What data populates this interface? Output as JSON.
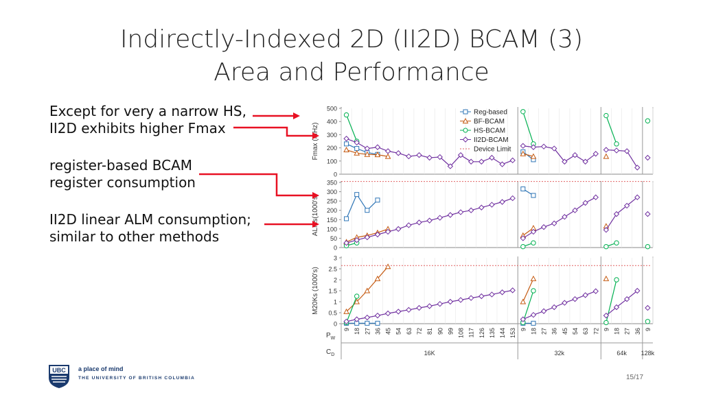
{
  "title": {
    "line1": "Indirectly-Indexed 2D (II2D) BCAM (3)",
    "line2": "Area and Performance"
  },
  "bullets": [
    {
      "lines": [
        "Except for very a narrow HS,",
        "II2D exhibits higher Fmax"
      ]
    },
    {
      "lines": [
        "register-based BCAM",
        "register consumption"
      ]
    },
    {
      "lines": [
        "II2D linear ALM consumption;",
        "similar to other methods"
      ]
    }
  ],
  "footer": {
    "logo_text": "UBC",
    "tagline": "a place of mind",
    "university": "THE UNIVERSITY OF BRITISH COLUMBIA",
    "page": "15/17"
  },
  "colors": {
    "reg": "#2e75b6",
    "bf": "#c55a11",
    "hs": "#00b050",
    "ii2d": "#7030a0",
    "limit": "#e06060",
    "arrow": "#e81123"
  },
  "chart_data": {
    "type": "line",
    "x_label": "PW",
    "cd_label": "CD",
    "categories": [
      "9",
      "18",
      "27",
      "36",
      "45",
      "54",
      "63",
      "72",
      "81",
      "90",
      "99",
      "108",
      "117",
      "126",
      "135",
      "144",
      "153",
      "9",
      "18",
      "27",
      "36",
      "45",
      "54",
      "63",
      "72",
      "9",
      "18",
      "27",
      "36",
      "9"
    ],
    "groups": [
      {
        "label": "16K",
        "start": 0,
        "end": 16
      },
      {
        "label": "32k",
        "start": 17,
        "end": 24
      },
      {
        "label": "64k",
        "start": 25,
        "end": 28
      },
      {
        "label": "128k",
        "start": 29,
        "end": 29
      }
    ],
    "legend": [
      "Reg-based",
      "BF-BCAM",
      "HS-BCAM",
      "II2D-BCAM",
      "Device Limit"
    ],
    "panels": [
      {
        "ylabel": "Fmax (MHz)",
        "ylim": [
          0,
          500
        ],
        "ticks": [
          "0",
          "100",
          "200",
          "300",
          "400",
          "500"
        ],
        "tick_values": [
          0,
          100,
          200,
          300,
          400,
          500
        ],
        "series": [
          {
            "name": "Reg-based",
            "values": [
              [
                0,
                230
              ],
              [
                1,
                195
              ],
              [
                2,
                165
              ],
              [
                3,
                150
              ],
              [
                17,
                170
              ],
              [
                18,
                110
              ]
            ]
          },
          {
            "name": "BF-BCAM",
            "values": [
              [
                0,
                185
              ],
              [
                1,
                160
              ],
              [
                2,
                150
              ],
              [
                3,
                148
              ],
              [
                4,
                135
              ],
              [
                17,
                155
              ],
              [
                18,
                135
              ],
              [
                25,
                135
              ]
            ]
          },
          {
            "name": "HS-BCAM",
            "values": [
              [
                0,
                450
              ],
              [
                1,
                250
              ],
              [
                17,
                475
              ],
              [
                18,
                230
              ],
              [
                25,
                445
              ],
              [
                26,
                230
              ],
              [
                29,
                405
              ]
            ]
          },
          {
            "name": "II2D-BCAM",
            "values": [
              [
                0,
                270
              ],
              [
                1,
                240
              ],
              [
                2,
                195
              ],
              [
                3,
                205
              ],
              [
                4,
                175
              ],
              [
                5,
                160
              ],
              [
                6,
                135
              ],
              [
                7,
                145
              ],
              [
                8,
                125
              ],
              [
                9,
                130
              ],
              [
                10,
                60
              ],
              [
                11,
                145
              ],
              [
                12,
                95
              ],
              [
                13,
                95
              ],
              [
                14,
                125
              ],
              [
                15,
                75
              ],
              [
                16,
                105
              ],
              [
                17,
                215
              ],
              [
                18,
                205
              ],
              [
                19,
                210
              ],
              [
                20,
                195
              ],
              [
                21,
                95
              ],
              [
                22,
                145
              ],
              [
                23,
                95
              ],
              [
                24,
                155
              ],
              [
                25,
                185
              ],
              [
                26,
                180
              ],
              [
                27,
                175
              ],
              [
                28,
                50
              ],
              [
                29,
                125
              ]
            ]
          }
        ]
      },
      {
        "ylabel": "ALMs(1000's)",
        "ylim": [
          0,
          350
        ],
        "ticks": [
          "0",
          "50",
          "100",
          "150",
          "200",
          "250",
          "300",
          "350"
        ],
        "tick_values": [
          0,
          50,
          100,
          150,
          200,
          250,
          300,
          350
        ],
        "limit": 355,
        "series": [
          {
            "name": "Reg-based",
            "values": [
              [
                0,
                155
              ],
              [
                1,
                285
              ],
              [
                2,
                200
              ],
              [
                3,
                255
              ],
              [
                17,
                315
              ],
              [
                18,
                280
              ]
            ]
          },
          {
            "name": "BF-BCAM",
            "values": [
              [
                0,
                30
              ],
              [
                1,
                55
              ],
              [
                2,
                65
              ],
              [
                3,
                80
              ],
              [
                4,
                100
              ],
              [
                17,
                65
              ],
              [
                18,
                105
              ],
              [
                25,
                115
              ]
            ]
          },
          {
            "name": "HS-BCAM",
            "values": [
              [
                0,
                10
              ],
              [
                1,
                25
              ],
              [
                17,
                5
              ],
              [
                18,
                25
              ],
              [
                25,
                5
              ],
              [
                26,
                25
              ],
              [
                29,
                5
              ]
            ]
          },
          {
            "name": "II2D-BCAM",
            "values": [
              [
                0,
                25
              ],
              [
                1,
                40
              ],
              [
                2,
                55
              ],
              [
                3,
                70
              ],
              [
                4,
                85
              ],
              [
                5,
                100
              ],
              [
                6,
                120
              ],
              [
                7,
                135
              ],
              [
                8,
                145
              ],
              [
                9,
                160
              ],
              [
                10,
                175
              ],
              [
                11,
                190
              ],
              [
                12,
                200
              ],
              [
                13,
                215
              ],
              [
                14,
                230
              ],
              [
                15,
                245
              ],
              [
                16,
                265
              ],
              [
                17,
                50
              ],
              [
                18,
                85
              ],
              [
                19,
                110
              ],
              [
                20,
                130
              ],
              [
                21,
                165
              ],
              [
                22,
                200
              ],
              [
                23,
                240
              ],
              [
                24,
                270
              ],
              [
                25,
                95
              ],
              [
                26,
                180
              ],
              [
                27,
                225
              ],
              [
                28,
                270
              ],
              [
                29,
                180
              ]
            ]
          }
        ]
      },
      {
        "ylabel": "M20Ks (1000's)",
        "ylim": [
          0,
          3
        ],
        "ticks": [
          "0",
          "0.5",
          "1",
          "1.5",
          "2",
          "2.5",
          "3"
        ],
        "tick_values": [
          0,
          0.5,
          1,
          1.5,
          2,
          2.5,
          3
        ],
        "limit": 2.65,
        "series": [
          {
            "name": "Reg-based",
            "values": [
              [
                0,
                0.02
              ],
              [
                1,
                0.02
              ],
              [
                2,
                0.02
              ],
              [
                3,
                0.02
              ],
              [
                17,
                0.02
              ],
              [
                18,
                0.02
              ]
            ]
          },
          {
            "name": "BF-BCAM",
            "values": [
              [
                0,
                0.55
              ],
              [
                1,
                1.0
              ],
              [
                2,
                1.5
              ],
              [
                3,
                2.05
              ],
              [
                4,
                2.6
              ],
              [
                17,
                1.0
              ],
              [
                18,
                2.05
              ],
              [
                25,
                2.05
              ]
            ]
          },
          {
            "name": "HS-BCAM",
            "values": [
              [
                0,
                0.05
              ],
              [
                1,
                1.25
              ],
              [
                17,
                0.05
              ],
              [
                18,
                1.5
              ],
              [
                25,
                0.05
              ],
              [
                26,
                2.0
              ],
              [
                29,
                0.1
              ]
            ]
          },
          {
            "name": "II2D-BCAM",
            "values": [
              [
                0,
                0.1
              ],
              [
                1,
                0.2
              ],
              [
                2,
                0.28
              ],
              [
                3,
                0.37
              ],
              [
                4,
                0.47
              ],
              [
                5,
                0.55
              ],
              [
                6,
                0.63
              ],
              [
                7,
                0.72
              ],
              [
                8,
                0.8
              ],
              [
                9,
                0.9
              ],
              [
                10,
                1.0
              ],
              [
                11,
                1.08
              ],
              [
                12,
                1.17
              ],
              [
                13,
                1.25
              ],
              [
                14,
                1.33
              ],
              [
                15,
                1.43
              ],
              [
                16,
                1.52
              ],
              [
                17,
                0.2
              ],
              [
                18,
                0.4
              ],
              [
                19,
                0.57
              ],
              [
                20,
                0.75
              ],
              [
                21,
                0.95
              ],
              [
                22,
                1.12
              ],
              [
                23,
                1.3
              ],
              [
                24,
                1.48
              ],
              [
                25,
                0.37
              ],
              [
                26,
                0.75
              ],
              [
                27,
                1.12
              ],
              [
                28,
                1.5
              ],
              [
                29,
                0.72
              ]
            ]
          }
        ]
      }
    ]
  }
}
